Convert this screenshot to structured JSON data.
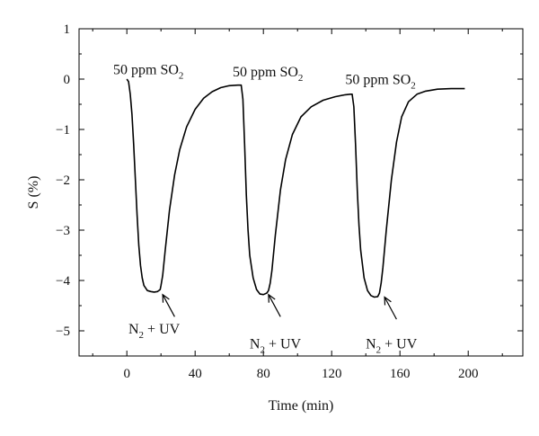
{
  "chart_data": {
    "type": "line",
    "xlabel": "Time (min)",
    "ylabel": "S (%)",
    "xlim": [
      -28,
      232
    ],
    "ylim": [
      -5.5,
      1
    ],
    "x_ticks": [
      0,
      40,
      80,
      120,
      160,
      200
    ],
    "x_tick_labels": [
      "0",
      "40",
      "80",
      "120",
      "160",
      "200"
    ],
    "y_ticks": [
      1,
      0,
      -1,
      -2,
      -3,
      -4,
      -5
    ],
    "y_tick_labels": [
      "1",
      "0",
      "−1",
      "−2",
      "−3",
      "−4",
      "−5"
    ],
    "grid": false,
    "legend": "none",
    "series": [
      {
        "color": "#000000",
        "points": [
          [
            0,
            0
          ],
          [
            1,
            -0.05
          ],
          [
            2,
            -0.3
          ],
          [
            3,
            -0.7
          ],
          [
            4,
            -1.3
          ],
          [
            5,
            -2.0
          ],
          [
            6,
            -2.7
          ],
          [
            7,
            -3.3
          ],
          [
            8,
            -3.7
          ],
          [
            9,
            -3.95
          ],
          [
            10,
            -4.1
          ],
          [
            12,
            -4.2
          ],
          [
            14,
            -4.22
          ],
          [
            16,
            -4.23
          ],
          [
            18,
            -4.22
          ],
          [
            19.5,
            -4.18
          ],
          [
            20,
            -4.1
          ],
          [
            21,
            -3.9
          ],
          [
            22.5,
            -3.4
          ],
          [
            25,
            -2.6
          ],
          [
            28,
            -1.9
          ],
          [
            31,
            -1.4
          ],
          [
            35,
            -0.95
          ],
          [
            40,
            -0.6
          ],
          [
            45,
            -0.38
          ],
          [
            50,
            -0.25
          ],
          [
            55,
            -0.17
          ],
          [
            60,
            -0.13
          ],
          [
            65,
            -0.12
          ],
          [
            67,
            -0.12
          ],
          [
            68,
            -0.4
          ],
          [
            69,
            -1.3
          ],
          [
            70,
            -2.3
          ],
          [
            71,
            -3.0
          ],
          [
            72,
            -3.5
          ],
          [
            74,
            -3.95
          ],
          [
            76,
            -4.18
          ],
          [
            78,
            -4.27
          ],
          [
            80,
            -4.28
          ],
          [
            82,
            -4.25
          ],
          [
            83,
            -4.2
          ],
          [
            84,
            -4.05
          ],
          [
            85,
            -3.8
          ],
          [
            87,
            -3.1
          ],
          [
            90,
            -2.2
          ],
          [
            93,
            -1.6
          ],
          [
            97,
            -1.1
          ],
          [
            102,
            -0.75
          ],
          [
            108,
            -0.55
          ],
          [
            115,
            -0.42
          ],
          [
            122,
            -0.35
          ],
          [
            128,
            -0.31
          ],
          [
            131,
            -0.3
          ],
          [
            132,
            -0.3
          ],
          [
            133,
            -0.55
          ],
          [
            134,
            -1.3
          ],
          [
            135,
            -2.2
          ],
          [
            136,
            -2.9
          ],
          [
            137,
            -3.4
          ],
          [
            139,
            -3.95
          ],
          [
            141,
            -4.2
          ],
          [
            143,
            -4.3
          ],
          [
            145,
            -4.33
          ],
          [
            147,
            -4.32
          ],
          [
            148,
            -4.25
          ],
          [
            149,
            -4.05
          ],
          [
            150,
            -3.75
          ],
          [
            152,
            -3.0
          ],
          [
            155,
            -2.0
          ],
          [
            158,
            -1.25
          ],
          [
            161,
            -0.75
          ],
          [
            165,
            -0.45
          ],
          [
            170,
            -0.3
          ],
          [
            175,
            -0.24
          ],
          [
            182,
            -0.2
          ],
          [
            190,
            -0.19
          ],
          [
            198,
            -0.19
          ]
        ]
      }
    ],
    "annotations": [
      {
        "main": "50 ppm SO",
        "sub": "2",
        "x": -8,
        "y": 0.1
      },
      {
        "main": "50 ppm SO",
        "sub": "2",
        "x": 62,
        "y": 0.05
      },
      {
        "main": "50 ppm SO",
        "sub": "2",
        "x": 128,
        "y": -0.1
      }
    ],
    "arrows": [
      {
        "label_a": "N",
        "label_sub": "2",
        "label_b": " + UV",
        "tip": [
          21,
          -4.28
        ],
        "tail": [
          28,
          -4.72
        ],
        "label_x": 16,
        "label_y": -5.05
      },
      {
        "label_a": "N",
        "label_sub": "2",
        "label_b": " + UV",
        "tip": [
          83,
          -4.28
        ],
        "tail": [
          90,
          -4.72
        ],
        "label_x": 87,
        "label_y": -5.35
      },
      {
        "label_a": "N",
        "label_sub": "2",
        "label_b": " + UV",
        "tip": [
          151,
          -4.33
        ],
        "tail": [
          158,
          -4.77
        ],
        "label_x": 155,
        "label_y": -5.35
      }
    ]
  }
}
